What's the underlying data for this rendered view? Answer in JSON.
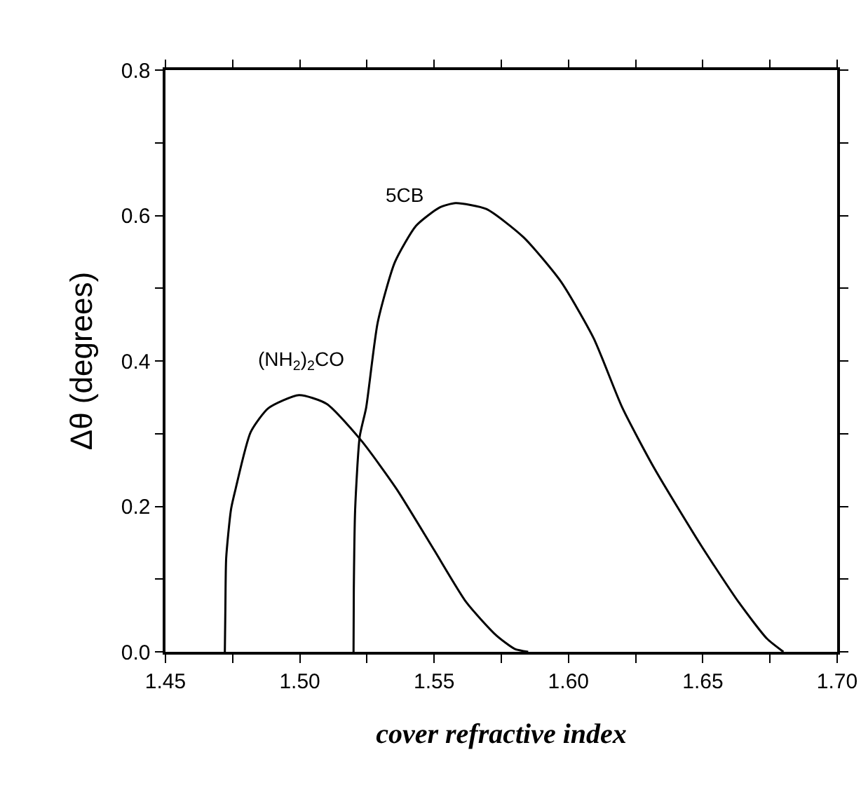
{
  "chart_data": {
    "type": "line",
    "xlabel": "cover refractive index",
    "ylabel": "Δθ (degrees)",
    "series": [
      {
        "color": "#000000",
        "x": [
          1.4721,
          1.4723,
          1.4726,
          1.4744,
          1.4761,
          1.4817,
          1.4883,
          1.4997,
          1.51,
          1.523,
          1.536,
          1.55,
          1.562,
          1.573,
          1.58,
          1.585
        ],
        "values": [
          0,
          0.062,
          0.129,
          0.196,
          0.224,
          0.302,
          0.335,
          0.353,
          0.341,
          0.29,
          0.224,
          0.14,
          0.068,
          0.023,
          0.004,
          0
        ]
      },
      {
        "color": "#000000",
        "x": [
          1.52,
          1.5201,
          1.5206,
          1.5223,
          1.5247,
          1.529,
          1.5354,
          1.5433,
          1.552,
          1.558,
          1.5694,
          1.5833,
          1.5972,
          1.6094,
          1.62,
          1.632,
          1.6494,
          1.6634,
          1.6739,
          1.68
        ],
        "values": [
          0,
          0.085,
          0.196,
          0.296,
          0.336,
          0.453,
          0.536,
          0.586,
          0.611,
          0.617,
          0.609,
          0.57,
          0.509,
          0.431,
          0.336,
          0.252,
          0.146,
          0.068,
          0.018,
          0
        ]
      }
    ],
    "annotations": [
      "(NH$_{2}$)$_{2}$CO",
      "5CB"
    ],
    "xlim": [
      1.45,
      1.7
    ],
    "xticks": [
      1.45,
      {
        "value": 1.475,
        "label": null
      },
      {
        "value": 1.5,
        "label": "1.50"
      },
      {
        "value": 1.525,
        "label": null
      },
      1.55,
      {
        "value": 1.575,
        "label": null
      },
      {
        "value": 1.6,
        "label": "1.60"
      },
      {
        "value": 1.625,
        "label": null
      },
      1.65,
      {
        "value": 1.675,
        "label": null
      },
      {
        "value": 1.7,
        "label": "1.70"
      }
    ],
    "ylim": [
      0,
      0.8
    ],
    "yticks": [
      {
        "value": 0,
        "label": "0.0"
      },
      {
        "value": 0.1,
        "label": null
      },
      0.2,
      {
        "value": 0.3,
        "label": null
      },
      0.4,
      {
        "value": 0.5,
        "label": null
      },
      0.6,
      {
        "value": 0.7,
        "label": null
      },
      0.8
    ],
    "grid": false,
    "marker": "none",
    "line_style": "solid"
  }
}
